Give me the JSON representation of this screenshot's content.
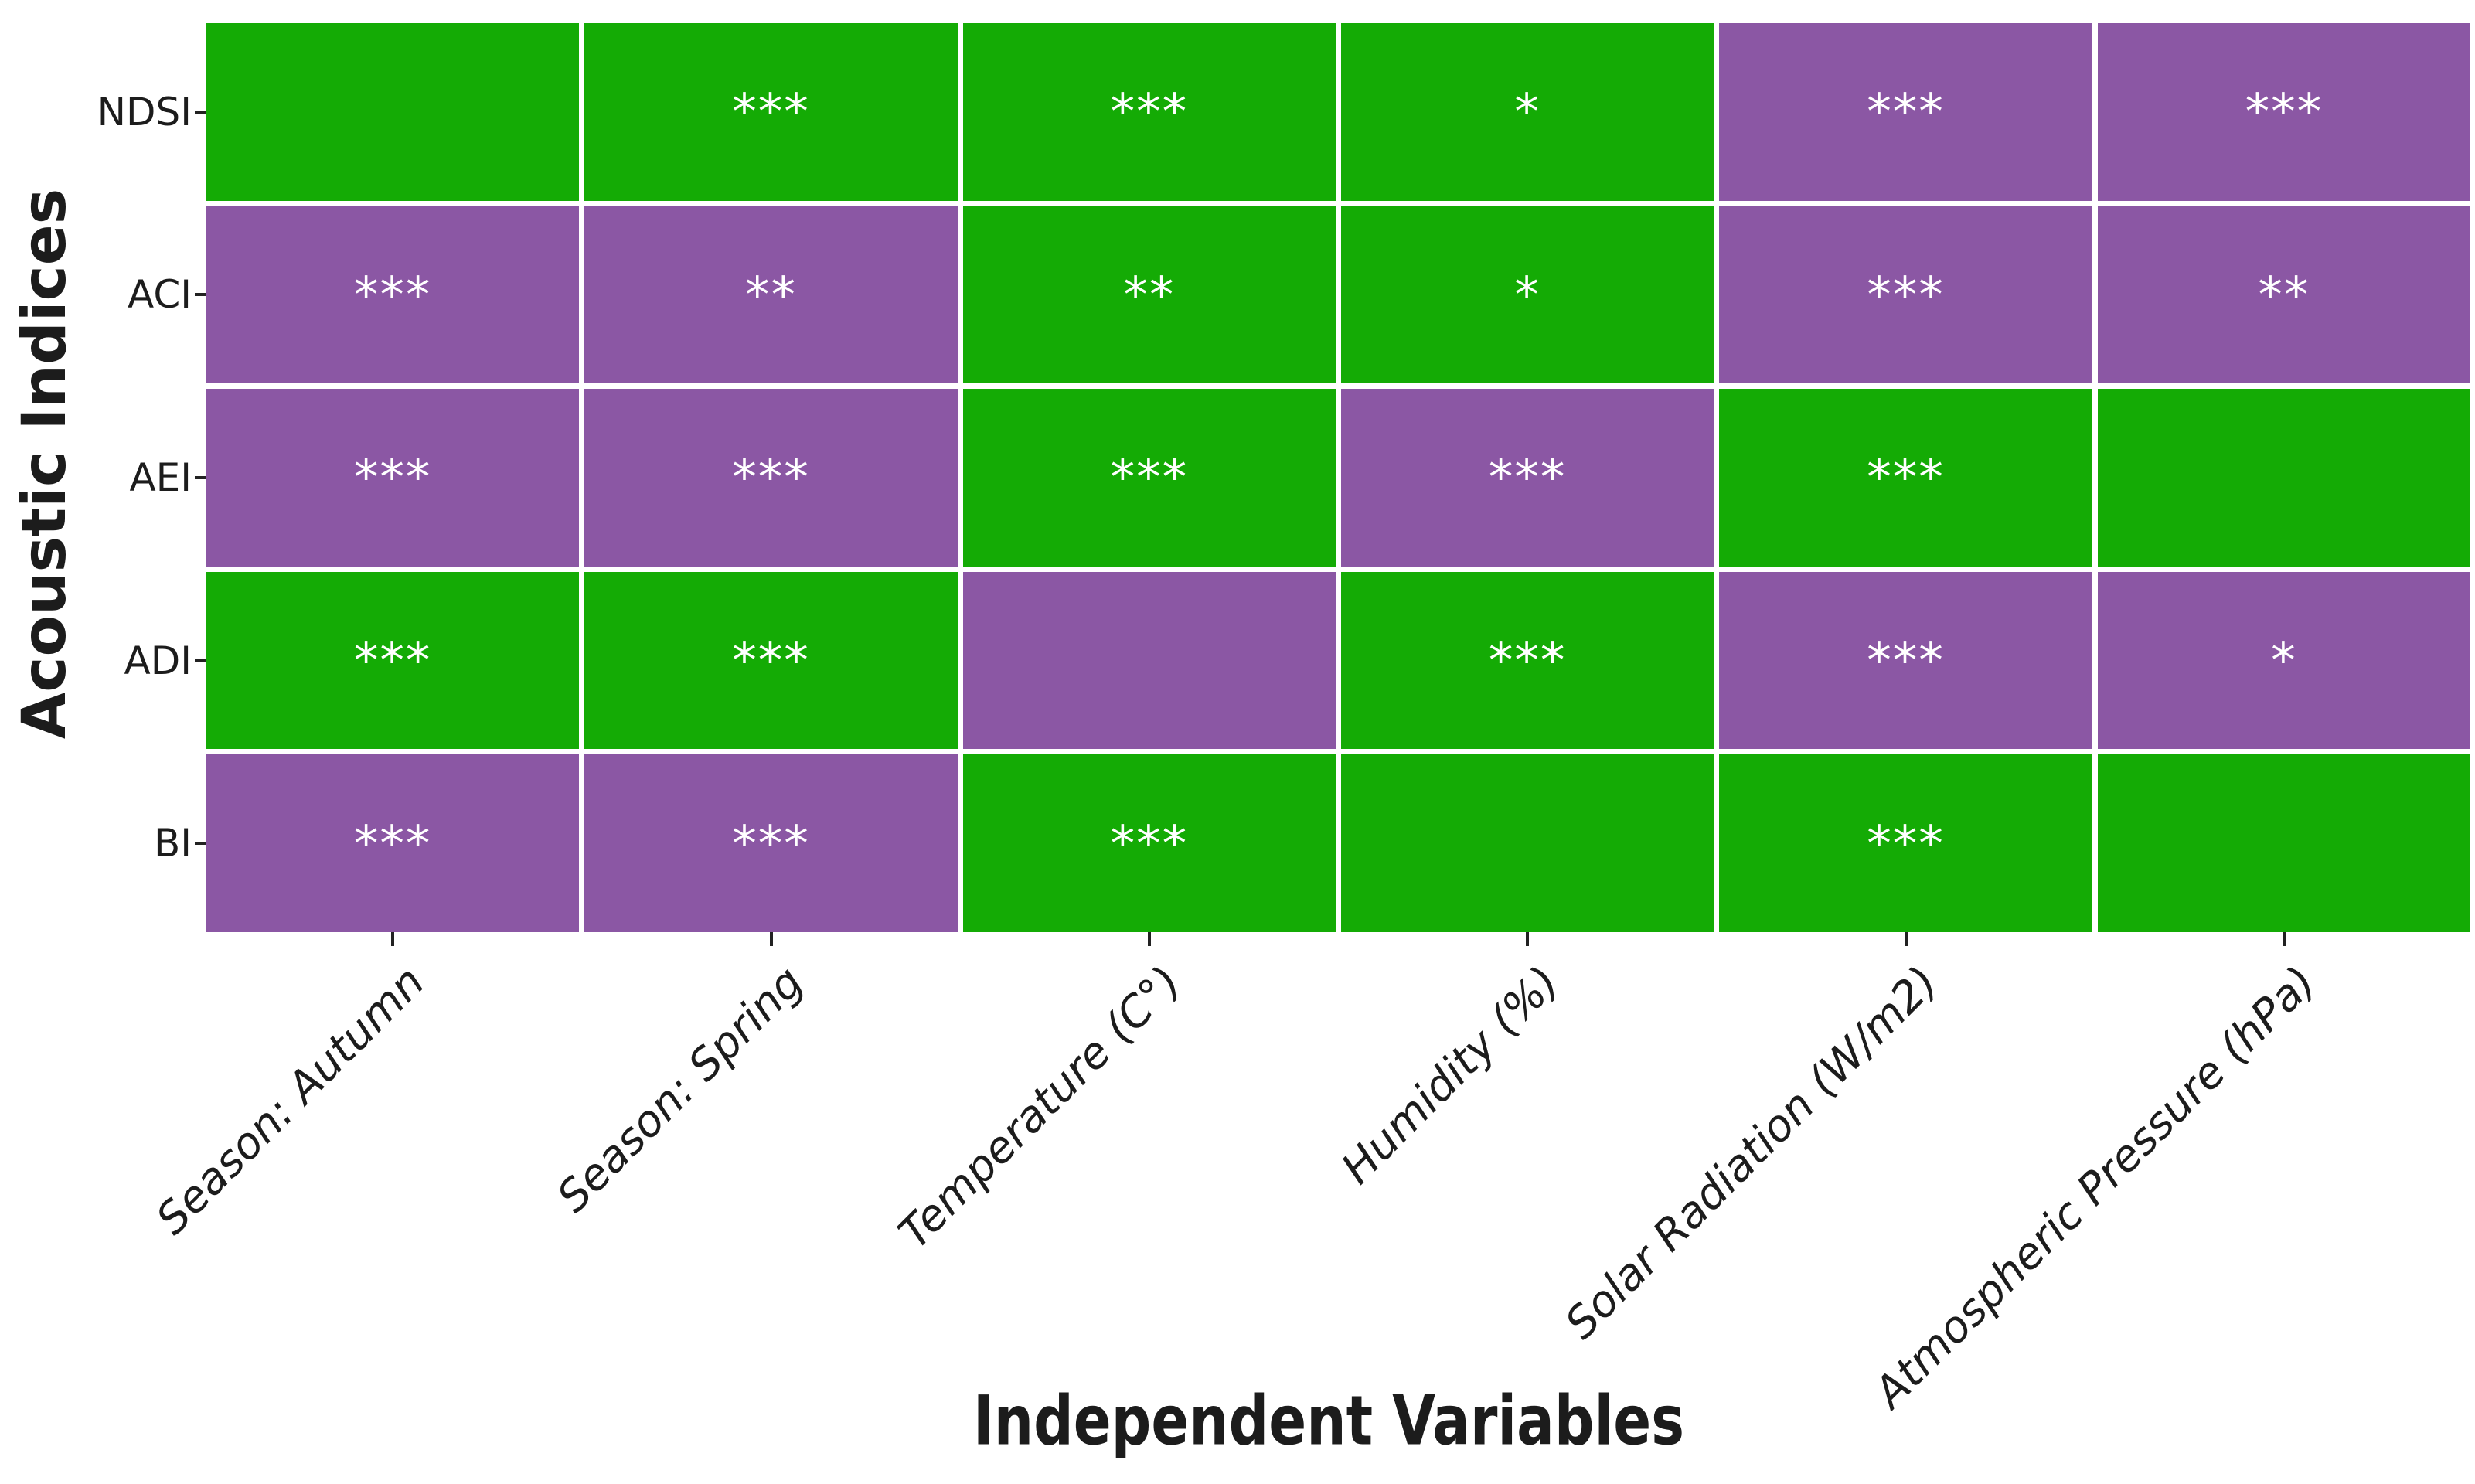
{
  "axes": {
    "x_label": "Independent Variables",
    "y_label": "Acoustic Indices"
  },
  "colors": {
    "green": "#14AB05",
    "purple": "#8B57A4",
    "star": "#FFFFFF",
    "tick": "#222222",
    "text": "#1C1C1C",
    "background": "#FFFFFF"
  },
  "chart_data": {
    "type": "heatmap",
    "title": "",
    "xlabel": "Independent Variables",
    "ylabel": "Acoustic Indices",
    "rows": [
      "NDSI",
      "ACI",
      "AEI",
      "ADI",
      "BI"
    ],
    "columns": [
      "Season: Autumn",
      "Season: Spring",
      "Temperature (C°)",
      "Humidity (%)",
      "Solar Radiation (W/m2)",
      "Atmospheric Pressure (hPa)"
    ],
    "cell_colors": [
      [
        "green",
        "green",
        "green",
        "green",
        "purple",
        "purple"
      ],
      [
        "purple",
        "purple",
        "green",
        "green",
        "purple",
        "purple"
      ],
      [
        "purple",
        "purple",
        "green",
        "purple",
        "green",
        "green"
      ],
      [
        "green",
        "green",
        "purple",
        "green",
        "purple",
        "purple"
      ],
      [
        "purple",
        "purple",
        "green",
        "green",
        "green",
        "green"
      ]
    ],
    "significance": [
      [
        "",
        "***",
        "***",
        "*",
        "***",
        "***"
      ],
      [
        "***",
        "**",
        "**",
        "*",
        "***",
        "**"
      ],
      [
        "***",
        "***",
        "***",
        "***",
        "***",
        ""
      ],
      [
        "***",
        "***",
        "",
        "***",
        "***",
        "*"
      ],
      [
        "***",
        "***",
        "***",
        "",
        "***",
        ""
      ]
    ],
    "legend": "none",
    "grid": "white cell separators"
  }
}
